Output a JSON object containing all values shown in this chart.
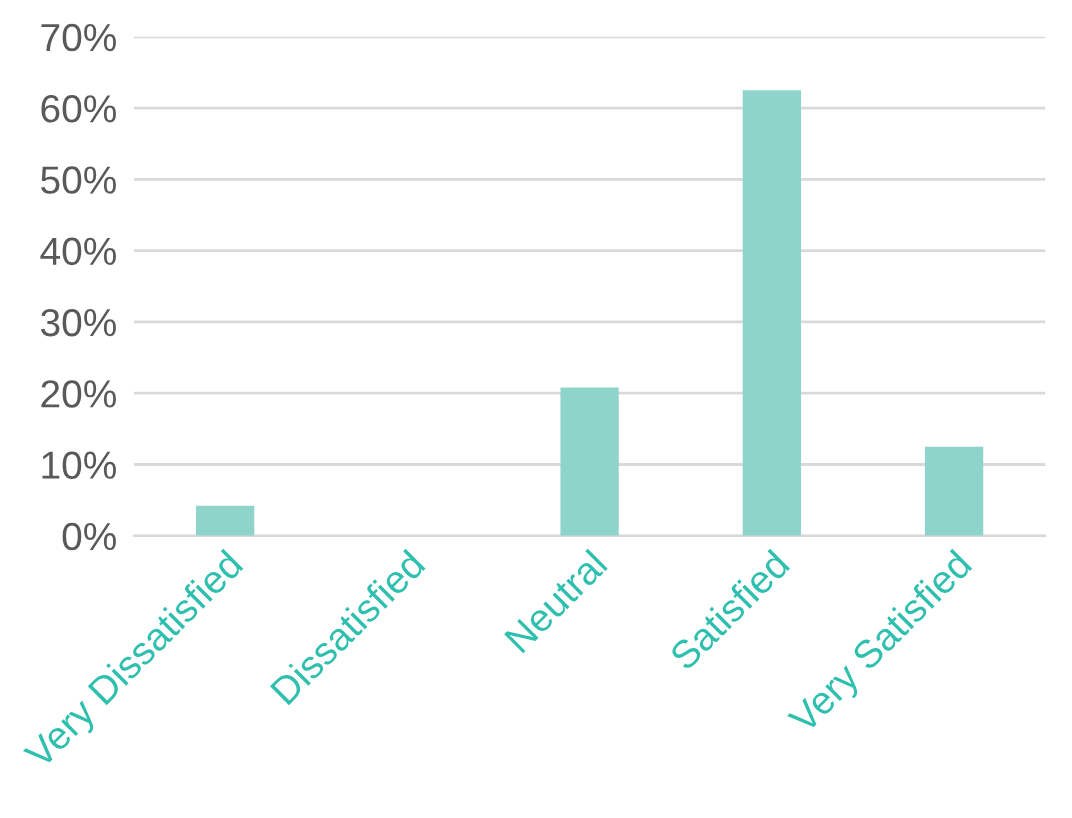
{
  "chart_data": {
    "type": "bar",
    "categories": [
      "Very Dissatisfied",
      "Dissatisfied",
      "Neutral",
      "Satisfied",
      "Very Satisfied"
    ],
    "values": [
      4.2,
      0,
      20.8,
      62.5,
      12.5
    ],
    "color": "#8fd4cb",
    "ylim": [
      0,
      70
    ],
    "yticks": [
      {
        "value": 0,
        "label": "0%"
      },
      {
        "value": 10,
        "label": "10%"
      },
      {
        "value": 20,
        "label": "20%"
      },
      {
        "value": 30,
        "label": "30%"
      },
      {
        "value": 40,
        "label": "40%"
      },
      {
        "value": 50,
        "label": "50%"
      },
      {
        "value": 60,
        "label": "60%"
      },
      {
        "value": 70,
        "label": "70%"
      }
    ],
    "grid": "y",
    "legend": false
  }
}
